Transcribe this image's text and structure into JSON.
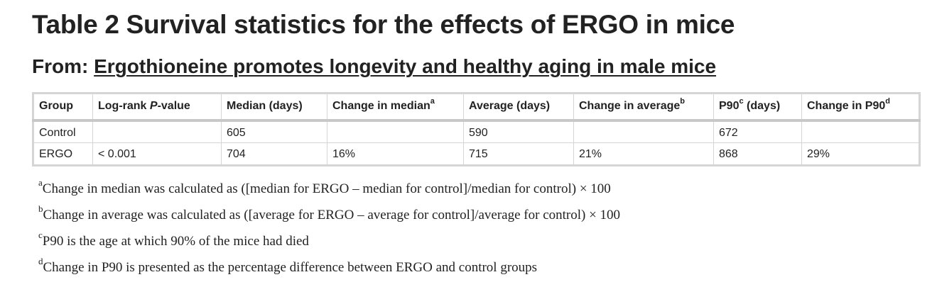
{
  "title": "Table 2 Survival statistics for the effects of ERGO in mice",
  "source": {
    "prefix": "From: ",
    "article_title": "Ergothioneine promotes longevity and healthy aging in male mice"
  },
  "table": {
    "headers": [
      {
        "pre": "Group",
        "italic": "",
        "post": "",
        "sup": ""
      },
      {
        "pre": "Log-rank ",
        "italic": "P",
        "post": "-value",
        "sup": ""
      },
      {
        "pre": "Median (days)",
        "italic": "",
        "post": "",
        "sup": ""
      },
      {
        "pre": "Change in median",
        "italic": "",
        "post": "",
        "sup": "a"
      },
      {
        "pre": "Average (days)",
        "italic": "",
        "post": "",
        "sup": ""
      },
      {
        "pre": "Change in average",
        "italic": "",
        "post": "",
        "sup": "b"
      },
      {
        "pre": "P90",
        "italic": "",
        "post": " (days)",
        "sup": "c"
      },
      {
        "pre": "Change in P90",
        "italic": "",
        "post": "",
        "sup": "d"
      }
    ],
    "rows": [
      [
        "Control",
        "",
        "605",
        "",
        "590",
        "",
        "672",
        ""
      ],
      [
        "ERGO",
        "< 0.001",
        "704",
        "16%",
        "715",
        "21%",
        "868",
        "29%"
      ]
    ]
  },
  "footnotes": [
    {
      "mark": "a",
      "text": "Change in median was calculated as ([median for ERGO – median for control]/median for control) × 100"
    },
    {
      "mark": "b",
      "text": "Change in average was calculated as ([average for ERGO – average for control]/average for control) × 100"
    },
    {
      "mark": "c",
      "text": "P90 is the age at which 90% of the mice had died"
    },
    {
      "mark": "d",
      "text": "Change in P90 is presented as the percentage difference between ERGO and control groups"
    }
  ]
}
